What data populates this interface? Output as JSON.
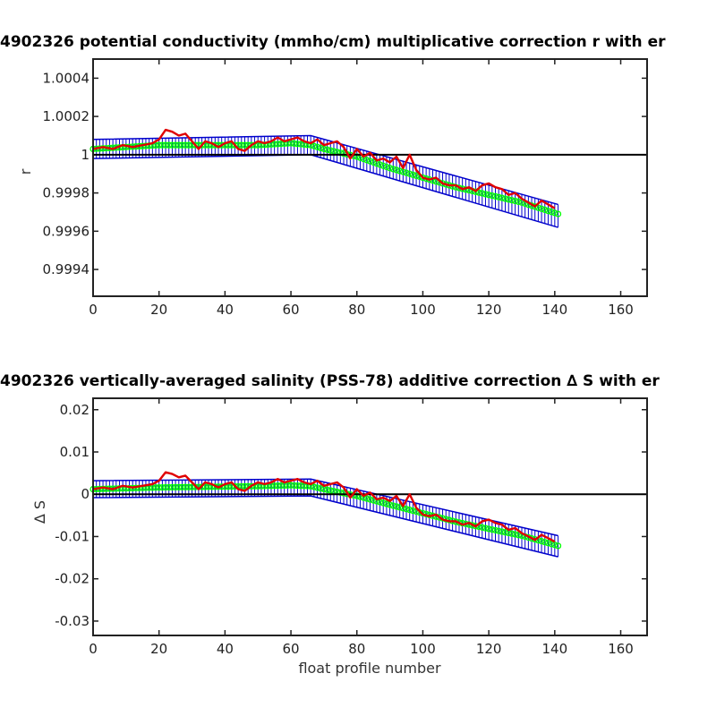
{
  "chart_data": [
    {
      "type": "line",
      "title": "4902326 potential conductivity (mmho/cm) multiplicative correction r with er",
      "xlabel": "",
      "ylabel": "r",
      "xlim": [
        0,
        168
      ],
      "ylim": [
        0.99926,
        1.0005
      ],
      "xticks": [
        "0",
        "20",
        "40",
        "60",
        "80",
        "100",
        "120",
        "140",
        "160"
      ],
      "yticks": [
        "0.9994",
        "0.9996",
        "0.9998",
        "1",
        "1.0002",
        "1.0004"
      ],
      "reference_line": 1,
      "series": [
        {
          "role": "fit",
          "color": "#0000cc",
          "x": [
            0,
            66,
            141
          ],
          "y": [
            1.00003,
            1.00004,
            0.99968
          ],
          "err_lo": [
            0.99998,
            1.0,
            0.99962
          ],
          "err_hi": [
            1.00008,
            1.0001,
            0.99974
          ]
        },
        {
          "role": "individual estimates",
          "color": "#00ff00",
          "x": [
            0,
            10,
            20,
            30,
            40,
            50,
            60,
            66,
            70,
            80,
            90,
            100,
            110,
            120,
            130,
            141
          ],
          "y": [
            1.00003,
            1.00004,
            1.00005,
            1.00005,
            1.00005,
            1.00005,
            1.00006,
            1.00005,
            1.00003,
            0.99999,
            0.99993,
            0.99988,
            0.99983,
            0.99979,
            0.99975,
            0.99969
          ]
        },
        {
          "role": "profile values",
          "color": "#e00000",
          "x": [
            0,
            3,
            6,
            9,
            12,
            15,
            18,
            20,
            22,
            24,
            26,
            28,
            30,
            32,
            34,
            36,
            38,
            40,
            42,
            44,
            46,
            48,
            50,
            52,
            54,
            56,
            58,
            60,
            62,
            64,
            66,
            68,
            70,
            72,
            74,
            76,
            78,
            80,
            82,
            84,
            86,
            88,
            90,
            92,
            94,
            96,
            98,
            100,
            102,
            104,
            106,
            108,
            110,
            112,
            114,
            116,
            118,
            120,
            122,
            124,
            126,
            128,
            130,
            132,
            134,
            136,
            138,
            140
          ],
          "y": [
            1.00003,
            1.00004,
            1.00003,
            1.00005,
            1.00004,
            1.00005,
            1.00006,
            1.00008,
            1.00013,
            1.00012,
            1.0001,
            1.00011,
            1.00007,
            1.00003,
            1.00007,
            1.00006,
            1.00004,
            1.00006,
            1.00007,
            1.00003,
            1.00002,
            1.00005,
            1.00007,
            1.00006,
            1.00007,
            1.00009,
            1.00007,
            1.00008,
            1.00009,
            1.00007,
            1.00006,
            1.00008,
            1.00005,
            1.00006,
            1.00007,
            1.00004,
            0.99998,
            1.00003,
            0.99999,
            1.00001,
            0.99997,
            0.99998,
            0.99996,
            0.99999,
            0.99993,
            1.0,
            0.99992,
            0.99988,
            0.99987,
            0.99988,
            0.99985,
            0.99984,
            0.99984,
            0.99982,
            0.99983,
            0.99981,
            0.99984,
            0.99985,
            0.99983,
            0.99982,
            0.99979,
            0.9998,
            0.99977,
            0.99975,
            0.99973,
            0.99976,
            0.99974,
            0.99972
          ]
        }
      ]
    },
    {
      "type": "line",
      "title": "4902326 vertically-averaged salinity (PSS-78) additive correction ∆ S with er",
      "xlabel": "float profile number",
      "ylabel": "∆ S",
      "xlim": [
        0,
        168
      ],
      "ylim": [
        -0.0334,
        0.0227
      ],
      "xticks": [
        "0",
        "20",
        "40",
        "60",
        "80",
        "100",
        "120",
        "140",
        "160"
      ],
      "yticks": [
        "-0.03",
        "-0.02",
        "-0.01",
        "0",
        "0.01",
        "0.02"
      ],
      "reference_line": 0,
      "series": [
        {
          "role": "fit",
          "color": "#0000cc",
          "x": [
            0,
            66,
            141
          ],
          "y": [
            0.0012,
            0.0016,
            -0.0123
          ],
          "err_lo": [
            -0.0008,
            -0.0004,
            -0.0148
          ],
          "err_hi": [
            0.0032,
            0.0036,
            -0.0098
          ]
        },
        {
          "role": "individual estimates",
          "color": "#00ff00",
          "x": [
            0,
            10,
            20,
            30,
            40,
            50,
            60,
            66,
            70,
            80,
            90,
            100,
            110,
            120,
            130,
            141
          ],
          "y": [
            0.0012,
            0.0014,
            0.0016,
            0.0017,
            0.0018,
            0.0019,
            0.0021,
            0.0019,
            0.0012,
            -0.0004,
            -0.0025,
            -0.0045,
            -0.0065,
            -0.0082,
            -0.0098,
            -0.0122
          ]
        },
        {
          "role": "profile values",
          "color": "#e00000",
          "x": [
            0,
            3,
            6,
            9,
            12,
            15,
            18,
            20,
            22,
            24,
            26,
            28,
            30,
            32,
            34,
            36,
            38,
            40,
            42,
            44,
            46,
            48,
            50,
            52,
            54,
            56,
            58,
            60,
            62,
            64,
            66,
            68,
            70,
            72,
            74,
            76,
            78,
            80,
            82,
            84,
            86,
            88,
            90,
            92,
            94,
            96,
            98,
            100,
            102,
            104,
            106,
            108,
            110,
            112,
            114,
            116,
            118,
            120,
            122,
            124,
            126,
            128,
            130,
            132,
            134,
            136,
            138,
            140
          ],
          "y": [
            0.0012,
            0.0016,
            0.0012,
            0.002,
            0.0016,
            0.002,
            0.0024,
            0.0032,
            0.0052,
            0.0048,
            0.004,
            0.0044,
            0.0028,
            0.0012,
            0.0028,
            0.0024,
            0.0016,
            0.0024,
            0.0028,
            0.0012,
            0.0008,
            0.002,
            0.0028,
            0.0024,
            0.0028,
            0.0036,
            0.0028,
            0.0032,
            0.0036,
            0.0028,
            0.0024,
            0.0032,
            0.002,
            0.0024,
            0.0028,
            0.0016,
            -0.0008,
            0.0012,
            -0.0004,
            0.0004,
            -0.0012,
            -0.0008,
            -0.0016,
            -0.0004,
            -0.0028,
            0.0,
            -0.0032,
            -0.0048,
            -0.0052,
            -0.0048,
            -0.006,
            -0.0064,
            -0.0064,
            -0.0072,
            -0.0068,
            -0.0076,
            -0.0064,
            -0.006,
            -0.0068,
            -0.0072,
            -0.0084,
            -0.008,
            -0.0092,
            -0.01,
            -0.0108,
            -0.0096,
            -0.0104,
            -0.0112
          ]
        }
      ]
    }
  ]
}
